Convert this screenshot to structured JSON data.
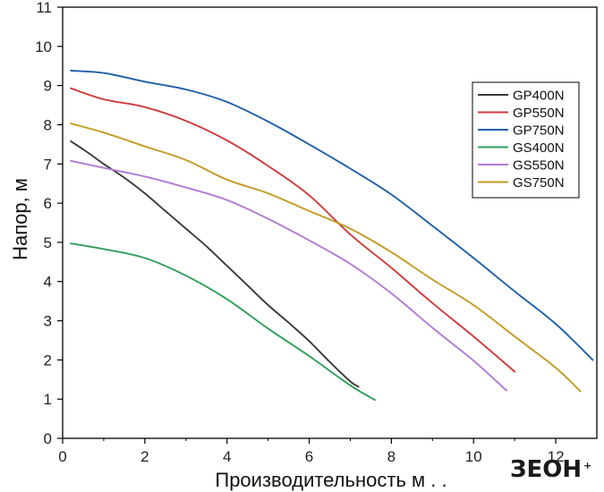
{
  "chart_data": {
    "type": "line",
    "title": "",
    "xlabel": "Производительность м . .",
    "ylabel": "Напор, м",
    "xlim": [
      0,
      13
    ],
    "ylim": [
      0,
      11
    ],
    "xticks": [
      0,
      2,
      4,
      6,
      8,
      10,
      12
    ],
    "yticks": [
      0,
      1,
      2,
      3,
      4,
      5,
      6,
      7,
      8,
      9,
      10,
      11
    ],
    "grid": false,
    "legend_position": "top-right",
    "series": [
      {
        "name": "GP400N",
        "color": "#3a3a3a",
        "x": [
          0.2,
          0.6,
          1.0,
          1.5,
          2.0,
          2.5,
          3.0,
          3.5,
          4.0,
          4.5,
          5.0,
          5.5,
          6.0,
          6.5,
          7.0,
          7.2
        ],
        "y": [
          7.58,
          7.3,
          7.0,
          6.65,
          6.25,
          5.8,
          5.35,
          4.9,
          4.4,
          3.9,
          3.4,
          2.95,
          2.48,
          1.95,
          1.45,
          1.32
        ]
      },
      {
        "name": "GP550N",
        "color": "#d03a3a",
        "x": [
          0.2,
          1.0,
          2.0,
          3.0,
          4.0,
          5.0,
          6.0,
          7.0,
          8.0,
          9.0,
          10.0,
          11.0
        ],
        "y": [
          8.93,
          8.65,
          8.45,
          8.1,
          7.6,
          6.95,
          6.2,
          5.2,
          4.35,
          3.45,
          2.6,
          1.7
        ]
      },
      {
        "name": "GP750N",
        "color": "#1f5fa8",
        "x": [
          0.2,
          1.0,
          2.0,
          3.0,
          4.0,
          5.0,
          6.0,
          7.0,
          8.0,
          9.0,
          10.0,
          11.0,
          12.0,
          12.9
        ],
        "y": [
          9.38,
          9.32,
          9.1,
          8.9,
          8.58,
          8.08,
          7.5,
          6.88,
          6.22,
          5.42,
          4.6,
          3.75,
          2.92,
          2.0
        ]
      },
      {
        "name": "GS400N",
        "color": "#2e9e5a",
        "x": [
          0.2,
          1.0,
          2.0,
          3.0,
          4.0,
          5.0,
          6.0,
          7.0,
          7.6
        ],
        "y": [
          4.97,
          4.83,
          4.6,
          4.15,
          3.55,
          2.8,
          2.1,
          1.35,
          0.98
        ]
      },
      {
        "name": "GS550N",
        "color": "#b07ad6",
        "x": [
          0.2,
          1.0,
          2.0,
          3.0,
          4.0,
          5.0,
          6.0,
          7.0,
          8.0,
          9.0,
          10.0,
          10.8
        ],
        "y": [
          7.08,
          6.9,
          6.68,
          6.4,
          6.08,
          5.6,
          5.05,
          4.45,
          3.7,
          2.82,
          1.98,
          1.22
        ]
      },
      {
        "name": "GS750N",
        "color": "#c49a22",
        "x": [
          0.2,
          1.0,
          2.0,
          3.0,
          4.0,
          5.0,
          6.0,
          7.0,
          8.0,
          9.0,
          10.0,
          11.0,
          12.0,
          12.6
        ],
        "y": [
          8.03,
          7.8,
          7.45,
          7.1,
          6.6,
          6.25,
          5.8,
          5.35,
          4.75,
          4.05,
          3.4,
          2.6,
          1.8,
          1.2
        ]
      }
    ]
  },
  "watermark": {
    "logo_text": "ЗЕОН",
    "logo_suffix": "+"
  }
}
